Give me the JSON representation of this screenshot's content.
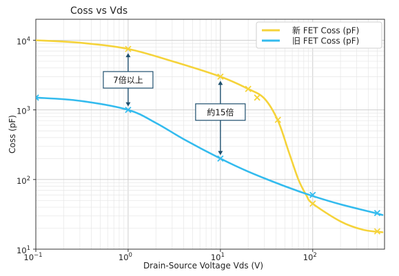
{
  "chart_data": {
    "type": "line",
    "title": "Coss vs Vds",
    "xlabel": "Drain-Source Voltage Vds (V)",
    "ylabel": "Coss (pF)",
    "xscale": "log",
    "yscale": "log",
    "xlim": [
      0.1,
      600
    ],
    "ylim": [
      10,
      20000
    ],
    "grid": true,
    "legend_position": "top-right",
    "x_ticks": [
      {
        "value": 0.1,
        "base": "10",
        "exp": "−1"
      },
      {
        "value": 1,
        "base": "10",
        "exp": "0"
      },
      {
        "value": 10,
        "base": "10",
        "exp": "1"
      },
      {
        "value": 100,
        "base": "10",
        "exp": "2"
      }
    ],
    "y_ticks": [
      {
        "value": 10,
        "base": "10",
        "exp": "1"
      },
      {
        "value": 100,
        "base": "10",
        "exp": "2"
      },
      {
        "value": 1000,
        "base": "10",
        "exp": "3"
      },
      {
        "value": 10000,
        "base": "10",
        "exp": "4"
      }
    ],
    "series": [
      {
        "name": "新 FET Coss (pF)",
        "color": "#f5d33a",
        "curve": [
          [
            0.1,
            10000
          ],
          [
            0.3,
            9200
          ],
          [
            1,
            7500
          ],
          [
            3,
            5000
          ],
          [
            10,
            3000
          ],
          [
            20,
            2000
          ],
          [
            30,
            1450
          ],
          [
            42,
            700
          ],
          [
            55,
            250
          ],
          [
            70,
            100
          ],
          [
            85,
            60
          ],
          [
            100,
            45
          ],
          [
            200,
            25
          ],
          [
            350,
            19
          ],
          [
            570,
            17.5
          ]
        ],
        "markers": [
          [
            1,
            7500
          ],
          [
            10,
            3000
          ],
          [
            20,
            2000
          ],
          [
            25,
            1500
          ],
          [
            42,
            720
          ],
          [
            100,
            45
          ],
          [
            500,
            18
          ]
        ]
      },
      {
        "name": "旧 FET Coss (pF)",
        "color": "#33bbee",
        "curve": [
          [
            0.1,
            1500
          ],
          [
            0.3,
            1350
          ],
          [
            1,
            1000
          ],
          [
            2,
            650
          ],
          [
            4,
            380
          ],
          [
            10,
            200
          ],
          [
            20,
            130
          ],
          [
            50,
            80
          ],
          [
            100,
            58
          ],
          [
            200,
            44
          ],
          [
            400,
            35
          ],
          [
            570,
            31
          ]
        ],
        "markers": [
          [
            0.1,
            1500
          ],
          [
            1,
            1000
          ],
          [
            10,
            200
          ],
          [
            100,
            60
          ],
          [
            500,
            33
          ]
        ]
      }
    ],
    "annotations": [
      {
        "text": "7倍以上",
        "x": 1,
        "y_from": 1000,
        "y_to": 7500,
        "label_y": 2700
      },
      {
        "text": "約15倍",
        "x": 10,
        "y_from": 200,
        "y_to": 3000,
        "label_y": 930
      }
    ]
  }
}
